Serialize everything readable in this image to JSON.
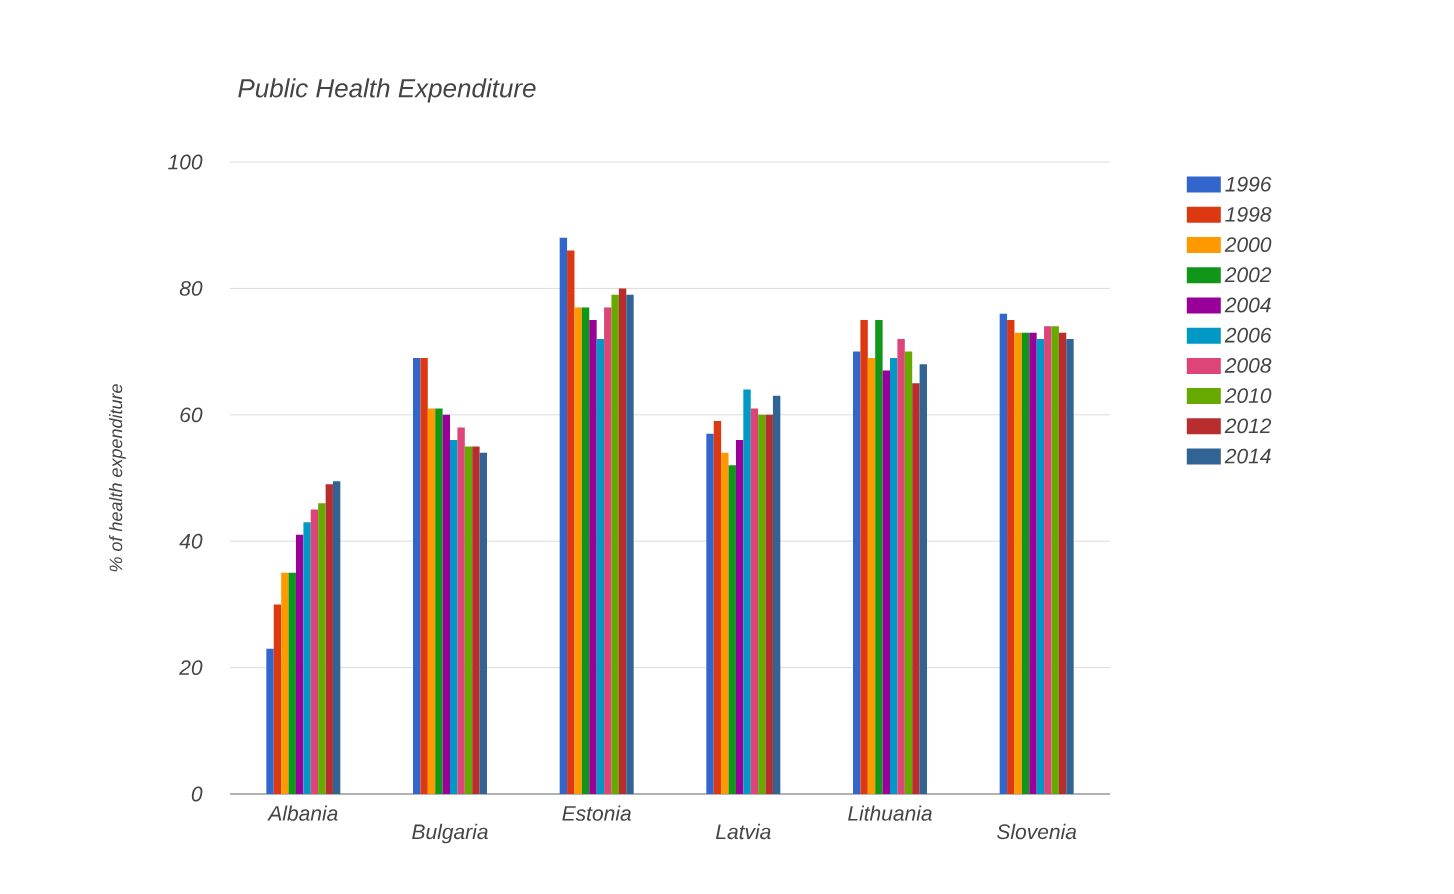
{
  "chart_data": {
    "type": "bar",
    "title": "Public Health Expenditure",
    "ylabel": "% of health expenditure",
    "categories": [
      "Albania",
      "Bulgaria",
      "Estonia",
      "Latvia",
      "Lithuania",
      "Slovenia"
    ],
    "series": [
      {
        "name": "1996",
        "color": "#3366cc",
        "values": [
          23,
          69,
          88,
          57,
          70,
          76
        ]
      },
      {
        "name": "1998",
        "color": "#dc3912",
        "values": [
          30,
          69,
          86,
          59,
          75,
          75
        ]
      },
      {
        "name": "2000",
        "color": "#ff9900",
        "values": [
          35,
          61,
          77,
          54,
          69,
          73
        ]
      },
      {
        "name": "2002",
        "color": "#109618",
        "values": [
          35,
          61,
          77,
          52,
          75,
          73
        ]
      },
      {
        "name": "2004",
        "color": "#990099",
        "values": [
          41,
          60,
          75,
          56,
          67,
          73
        ]
      },
      {
        "name": "2006",
        "color": "#0099c6",
        "values": [
          43,
          56,
          72,
          64,
          69,
          72
        ]
      },
      {
        "name": "2008",
        "color": "#dd4477",
        "values": [
          45,
          58,
          77,
          61,
          72,
          74
        ]
      },
      {
        "name": "2010",
        "color": "#66aa00",
        "values": [
          46,
          55,
          79,
          60,
          70,
          74
        ]
      },
      {
        "name": "2012",
        "color": "#b82e2e",
        "values": [
          49,
          55,
          80,
          60,
          65,
          73
        ]
      },
      {
        "name": "2014",
        "color": "#316395",
        "values": [
          49.5,
          54,
          79,
          63,
          68,
          72
        ]
      }
    ],
    "ylim": [
      0,
      100
    ],
    "yticks": [
      0,
      20,
      40,
      60,
      80,
      100
    ],
    "grid": "y",
    "legend": "right"
  }
}
